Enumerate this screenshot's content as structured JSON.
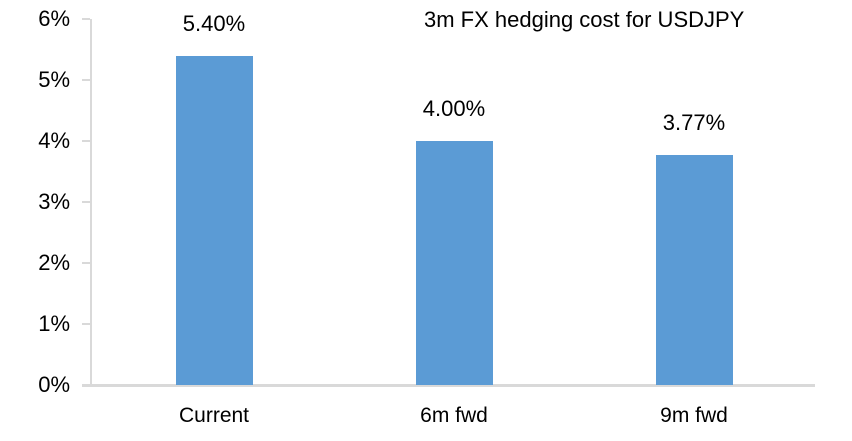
{
  "chart_data": {
    "type": "bar",
    "title": "3m FX hedging cost for USDJPY",
    "categories": [
      "Current",
      "6m fwd",
      "9m fwd"
    ],
    "values": [
      5.4,
      4.0,
      3.77
    ],
    "bar_labels": [
      "5.40%",
      "4.00%",
      "3.77%"
    ],
    "ylim": [
      0,
      6
    ],
    "ytick_labels": [
      "0%",
      "1%",
      "2%",
      "3%",
      "4%",
      "5%",
      "6%"
    ],
    "grid": false,
    "legend": false,
    "bar_color": "#5B9BD5",
    "axis_color": "#D9D9D9",
    "text_color": "#000000",
    "background_color": "#FFFFFF"
  }
}
